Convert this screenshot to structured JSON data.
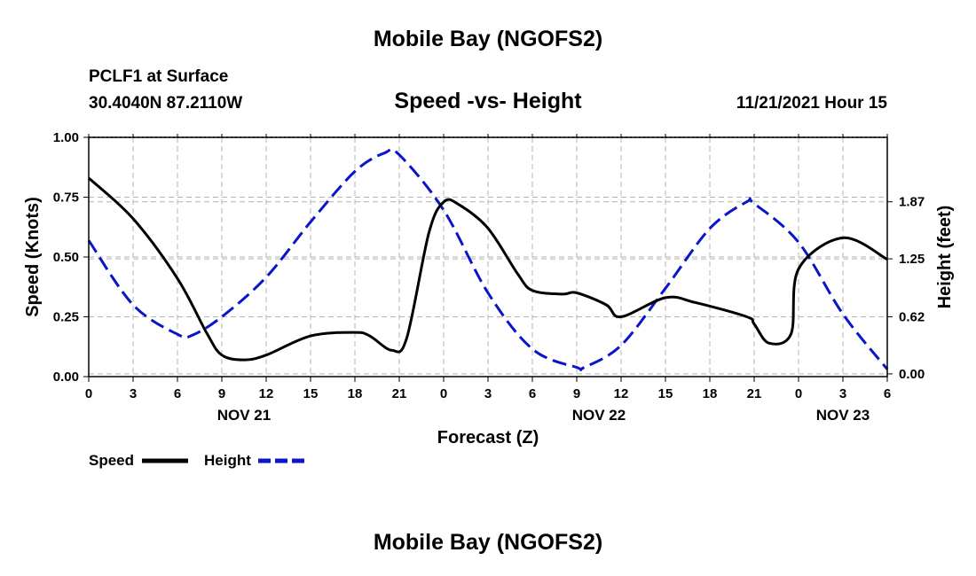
{
  "header": {
    "top_title": "Mobile Bay (NGOFS2)",
    "station": "PCLF1 at Surface",
    "coordinates": "30.4040N  87.2110W",
    "subtitle": "Speed -vs- Height",
    "datetime": "11/21/2021 Hour 15"
  },
  "footer": {
    "bottom_title": "Mobile Bay (NGOFS2)"
  },
  "legend": {
    "speed_label": "Speed",
    "height_label": "Height"
  },
  "colors": {
    "speed": "#000000",
    "height": "#0a14c8",
    "grid": "#b4b4b4"
  },
  "chart_data": {
    "type": "line",
    "title": "Speed -vs- Height",
    "xlabel": "Forecast (Z)",
    "ylabel": "Speed (Knots)",
    "y2label": "Height (feet)",
    "grid": true,
    "legend_position": "bottom-left",
    "xlim": [
      0,
      54
    ],
    "xticks": [
      0,
      3,
      6,
      9,
      12,
      15,
      18,
      21,
      24,
      27,
      30,
      33,
      36,
      39,
      42,
      45,
      48,
      51,
      54
    ],
    "xtick_labels": [
      "0",
      "3",
      "6",
      "9",
      "12",
      "15",
      "18",
      "21",
      "0",
      "3",
      "6",
      "9",
      "12",
      "15",
      "18",
      "21",
      "0",
      "3",
      "6"
    ],
    "day_labels": [
      {
        "hour": 10.5,
        "label": "NOV 21"
      },
      {
        "hour": 34.5,
        "label": "NOV 22"
      },
      {
        "hour": 51,
        "label": "NOV 23"
      }
    ],
    "ylim": [
      0,
      1
    ],
    "yticks": [
      0,
      0.25,
      0.5,
      0.75,
      1
    ],
    "ytick_labels": [
      "0.00",
      "0.25",
      "0.50",
      "0.75",
      "1.00"
    ],
    "y2lim": [
      -0.03,
      2.57
    ],
    "y2ticks": [
      0,
      0.62,
      1.25,
      1.87
    ],
    "y2tick_labels": [
      "0.00",
      "0.62",
      "1.25",
      "1.87"
    ],
    "series": [
      {
        "name": "Speed",
        "axis": "left",
        "style": "solid",
        "x": [
          0,
          3,
          6,
          8,
          9,
          10.5,
          12,
          15,
          18,
          19,
          20.5,
          21.5,
          23,
          24,
          25,
          27,
          29,
          30,
          32,
          33,
          35,
          36,
          39,
          41,
          44.5,
          45,
          46,
          47.5,
          48,
          51,
          54
        ],
        "y": [
          0.83,
          0.66,
          0.41,
          0.18,
          0.09,
          0.07,
          0.09,
          0.17,
          0.185,
          0.17,
          0.11,
          0.16,
          0.6,
          0.73,
          0.72,
          0.62,
          0.43,
          0.36,
          0.345,
          0.35,
          0.3,
          0.25,
          0.33,
          0.31,
          0.25,
          0.22,
          0.14,
          0.18,
          0.45,
          0.58,
          0.49
        ]
      },
      {
        "name": "Height",
        "axis": "right",
        "style": "dashed",
        "x": [
          0,
          3,
          6,
          7,
          9,
          12,
          15,
          18,
          20,
          21,
          24,
          27,
          30,
          33,
          33.5,
          36,
          39,
          42,
          44.5,
          45,
          48,
          51,
          54
        ],
        "y": [
          1.45,
          0.75,
          0.43,
          0.42,
          0.62,
          1.05,
          1.65,
          2.2,
          2.4,
          2.38,
          1.78,
          0.88,
          0.27,
          0.07,
          0.07,
          0.31,
          0.93,
          1.58,
          1.87,
          1.85,
          1.43,
          0.65,
          0.05
        ]
      }
    ]
  }
}
